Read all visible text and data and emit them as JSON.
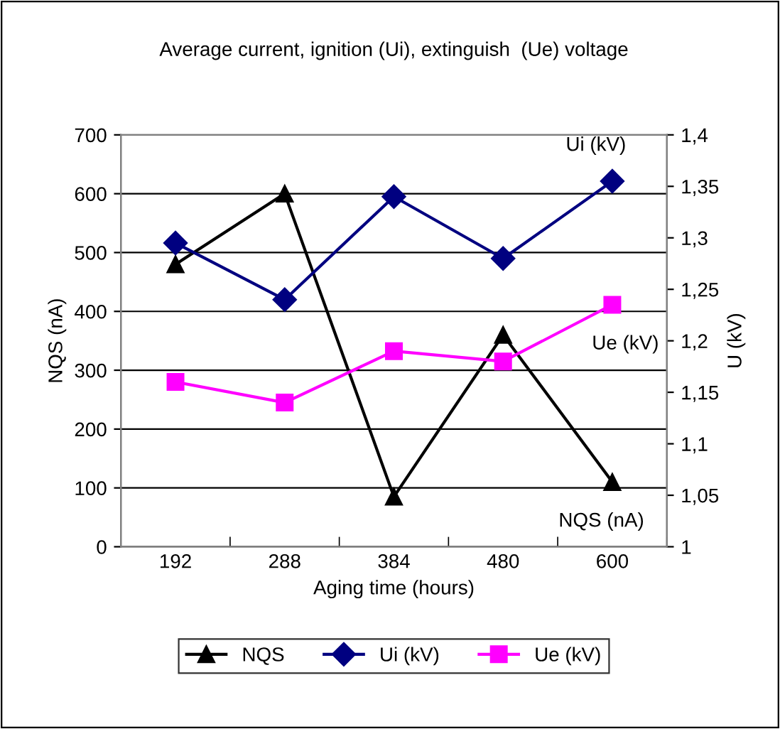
{
  "chart_data": {
    "type": "line",
    "title": "Average current, ignition (Ui), extinguish  (Ue) voltage",
    "xlabel": "Aging time (hours)",
    "ylabel": "NQS (nA)",
    "y2label": "U (kV)",
    "categories": [
      "192",
      "288",
      "384",
      "480",
      "600"
    ],
    "series": [
      {
        "name": "NQS",
        "color": "#000000",
        "marker": "triangle",
        "values": [
          480,
          600,
          85,
          360,
          110
        ]
      },
      {
        "name": "Ui (kV)",
        "color": "#000080",
        "marker": "diamond",
        "axis": "y2",
        "values": [
          1.295,
          1.24,
          1.34,
          1.28,
          1.355
        ]
      },
      {
        "name": "Ue (kV)",
        "color": "#ff00ff",
        "marker": "square",
        "axis": "y2",
        "values": [
          1.16,
          1.14,
          1.19,
          1.18,
          1.235
        ]
      }
    ],
    "annotations": [
      "NQS (nA)",
      "Ui (kV)",
      "Ue (kV)"
    ],
    "ylim": [
      0,
      700
    ],
    "yticks": [
      0,
      100,
      200,
      300,
      400,
      500,
      600,
      700
    ],
    "y2lim": [
      1,
      1.4
    ],
    "y2ticks": [
      {
        "value": 1,
        "label": "1"
      },
      {
        "value": 1.05,
        "label": "1,05"
      },
      {
        "value": 1.1,
        "label": "1,1"
      },
      {
        "value": 1.15,
        "label": "1,15"
      },
      {
        "value": 1.2,
        "label": "1,2"
      },
      {
        "value": 1.25,
        "label": "1,25"
      },
      {
        "value": 1.3,
        "label": "1,3"
      },
      {
        "value": 1.35,
        "label": "1,35"
      },
      {
        "value": 1.4,
        "label": "1,4"
      }
    ],
    "grid": "y",
    "legend": "bottom",
    "line_style": "solid"
  }
}
